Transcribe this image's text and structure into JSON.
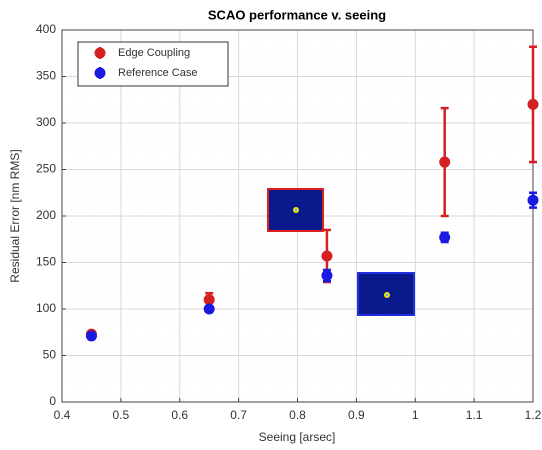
{
  "chart_data": {
    "type": "scatter",
    "title": "SCAO performance v. seeing",
    "x_label": "Seeing [arsec]",
    "y_label": "Residual Error [nm RMS]",
    "xlim": [
      0.4,
      1.2
    ],
    "xticks": [
      0.4,
      0.5,
      0.6,
      0.7,
      0.8,
      0.9,
      1,
      1.1,
      1.2
    ],
    "ylim": [
      0,
      400
    ],
    "yticks": [
      0,
      50,
      100,
      150,
      200,
      250,
      300,
      350,
      400
    ],
    "grid": true,
    "legend": "upper-left",
    "series": [
      {
        "name": "Edge Coupling",
        "color": "#d42020",
        "x": [
          0.45,
          0.65,
          0.85,
          1.05,
          1.2
        ],
        "values": [
          73,
          110,
          157,
          258,
          320
        ],
        "errors": [
          3,
          7,
          28,
          58,
          62
        ]
      },
      {
        "name": "Reference Case",
        "color": "#1a1ae0",
        "x": [
          0.45,
          0.65,
          0.85,
          1.05,
          1.2
        ],
        "values": [
          71,
          100,
          136,
          177,
          217
        ],
        "errors": [
          3,
          3,
          6,
          5,
          8
        ]
      }
    ]
  }
}
